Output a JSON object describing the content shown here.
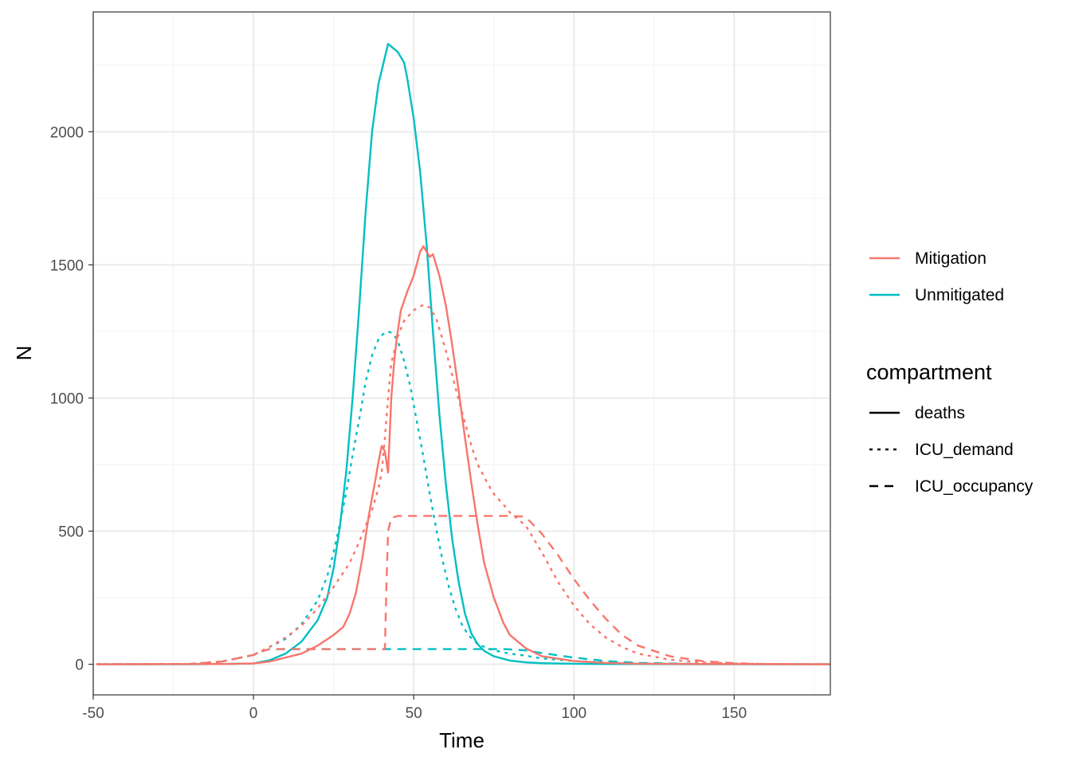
{
  "chart_data": {
    "type": "line",
    "xlabel": "Time",
    "ylabel": "N",
    "xlim": [
      -50,
      180
    ],
    "ylim": [
      -115,
      2450
    ],
    "x_ticks": [
      "-50",
      "0",
      "50",
      "100",
      "150"
    ],
    "y_ticks": [
      "0",
      "500",
      "1000",
      "1500",
      "2000"
    ],
    "grid": true,
    "legend_position": "right",
    "colors": {
      "Mitigation": "#F8766D",
      "Unmitigated": "#00BFC4"
    },
    "color_legend": {
      "title": "",
      "entries": [
        "Mitigation",
        "Unmitigated"
      ]
    },
    "linetype_legend": {
      "title": "compartment",
      "entries": [
        "deaths",
        "ICU_demand",
        "ICU_occupancy"
      ]
    },
    "series": [
      {
        "name": "Unmitigated",
        "compartment": "deaths",
        "linetype": "solid",
        "x": [
          -49,
          -20,
          -10,
          0,
          5,
          10,
          15,
          20,
          23,
          25,
          27,
          29,
          31,
          33,
          35,
          37,
          39,
          40,
          41,
          42,
          43,
          44,
          45,
          46,
          47,
          48,
          50,
          52,
          54,
          56,
          58,
          60,
          62,
          64,
          66,
          68,
          70,
          72,
          75,
          80,
          85,
          90,
          100,
          110,
          120,
          140,
          180
        ],
        "y": [
          0,
          0,
          1,
          3,
          15,
          40,
          85,
          165,
          250,
          360,
          520,
          730,
          1010,
          1340,
          1700,
          2000,
          2180,
          2230,
          2280,
          2330,
          2320,
          2310,
          2300,
          2280,
          2260,
          2200,
          2050,
          1850,
          1580,
          1250,
          940,
          680,
          470,
          310,
          190,
          115,
          75,
          50,
          30,
          14,
          7,
          4,
          2,
          1,
          1,
          0,
          0
        ]
      },
      {
        "name": "Unmitigated",
        "compartment": "ICU_demand",
        "linetype": "dotted",
        "x": [
          -49,
          -20,
          -10,
          0,
          5,
          10,
          15,
          20,
          23,
          25,
          27,
          29,
          31,
          33,
          35,
          37,
          39,
          40,
          41,
          42,
          43,
          44,
          45,
          47,
          49,
          51,
          53,
          55,
          57,
          59,
          61,
          63,
          65,
          67,
          70,
          75,
          80,
          85,
          90,
          100,
          110,
          120,
          140,
          180
        ],
        "y": [
          0,
          1,
          10,
          35,
          65,
          95,
          150,
          240,
          330,
          420,
          530,
          650,
          790,
          920,
          1060,
          1160,
          1220,
          1235,
          1245,
          1250,
          1245,
          1235,
          1215,
          1140,
          1040,
          910,
          780,
          640,
          510,
          390,
          290,
          210,
          150,
          110,
          75,
          52,
          40,
          32,
          22,
          12,
          6,
          3,
          1,
          0
        ]
      },
      {
        "name": "Unmitigated",
        "compartment": "ICU_occupancy",
        "linetype": "dashed",
        "x": [
          -49,
          -20,
          -10,
          0,
          3,
          5,
          10,
          20,
          30,
          40,
          50,
          60,
          70,
          75,
          78,
          80,
          85,
          90,
          100,
          110,
          120,
          140,
          180
        ],
        "y": [
          0,
          1,
          10,
          35,
          50,
          57,
          57,
          57,
          57,
          57,
          57,
          57,
          57,
          57,
          57,
          56,
          52,
          42,
          25,
          12,
          5,
          1,
          0
        ]
      },
      {
        "name": "Mitigation",
        "compartment": "deaths",
        "linetype": "solid",
        "x": [
          -49,
          -10,
          0,
          5,
          10,
          15,
          20,
          25,
          28,
          30,
          32,
          34,
          36,
          38,
          39,
          40,
          41,
          42,
          43,
          44,
          45,
          46,
          48,
          50,
          52,
          53,
          54,
          55,
          56,
          57,
          58,
          60,
          62,
          64,
          66,
          68,
          70,
          72,
          75,
          78,
          80,
          85,
          90,
          100,
          110,
          120,
          140,
          180
        ],
        "y": [
          0,
          1,
          3,
          10,
          25,
          40,
          70,
          110,
          140,
          190,
          270,
          400,
          560,
          690,
          760,
          820,
          800,
          720,
          1000,
          1150,
          1250,
          1330,
          1400,
          1460,
          1550,
          1570,
          1550,
          1530,
          1540,
          1500,
          1460,
          1350,
          1200,
          1030,
          850,
          680,
          520,
          380,
          250,
          155,
          110,
          60,
          30,
          12,
          5,
          2,
          1,
          0
        ]
      },
      {
        "name": "Mitigation",
        "compartment": "ICU_demand",
        "linetype": "dotted",
        "x": [
          -49,
          -20,
          -10,
          0,
          5,
          10,
          15,
          20,
          25,
          30,
          33,
          35,
          37,
          38,
          39,
          40,
          41,
          42,
          43,
          45,
          47,
          50,
          53,
          55,
          57,
          60,
          63,
          65,
          68,
          70,
          73,
          75,
          78,
          80,
          85,
          90,
          95,
          100,
          105,
          110,
          115,
          120,
          130,
          140,
          150,
          160,
          180
        ],
        "y": [
          0,
          1,
          10,
          35,
          65,
          100,
          145,
          210,
          290,
          380,
          460,
          520,
          580,
          620,
          660,
          720,
          850,
          1000,
          1130,
          1230,
          1290,
          1330,
          1350,
          1340,
          1300,
          1180,
          1040,
          950,
          820,
          750,
          680,
          640,
          600,
          570,
          520,
          420,
          310,
          220,
          150,
          100,
          65,
          40,
          17,
          7,
          3,
          1,
          0
        ]
      },
      {
        "name": "Mitigation",
        "compartment": "ICU_occupancy",
        "linetype": "dashed",
        "x": [
          -49,
          -20,
          -10,
          0,
          3,
          5,
          10,
          20,
          30,
          35,
          38,
          40,
          41,
          41.5,
          42,
          43,
          45,
          50,
          60,
          70,
          80,
          84,
          86,
          90,
          95,
          100,
          105,
          110,
          115,
          120,
          130,
          140,
          150,
          160,
          180
        ],
        "y": [
          0,
          1,
          10,
          35,
          50,
          57,
          57,
          57,
          57,
          57,
          57,
          57,
          57,
          300,
          500,
          550,
          557,
          557,
          557,
          557,
          557,
          555,
          540,
          490,
          410,
          320,
          240,
          170,
          110,
          70,
          30,
          12,
          4,
          1,
          0
        ]
      }
    ]
  }
}
